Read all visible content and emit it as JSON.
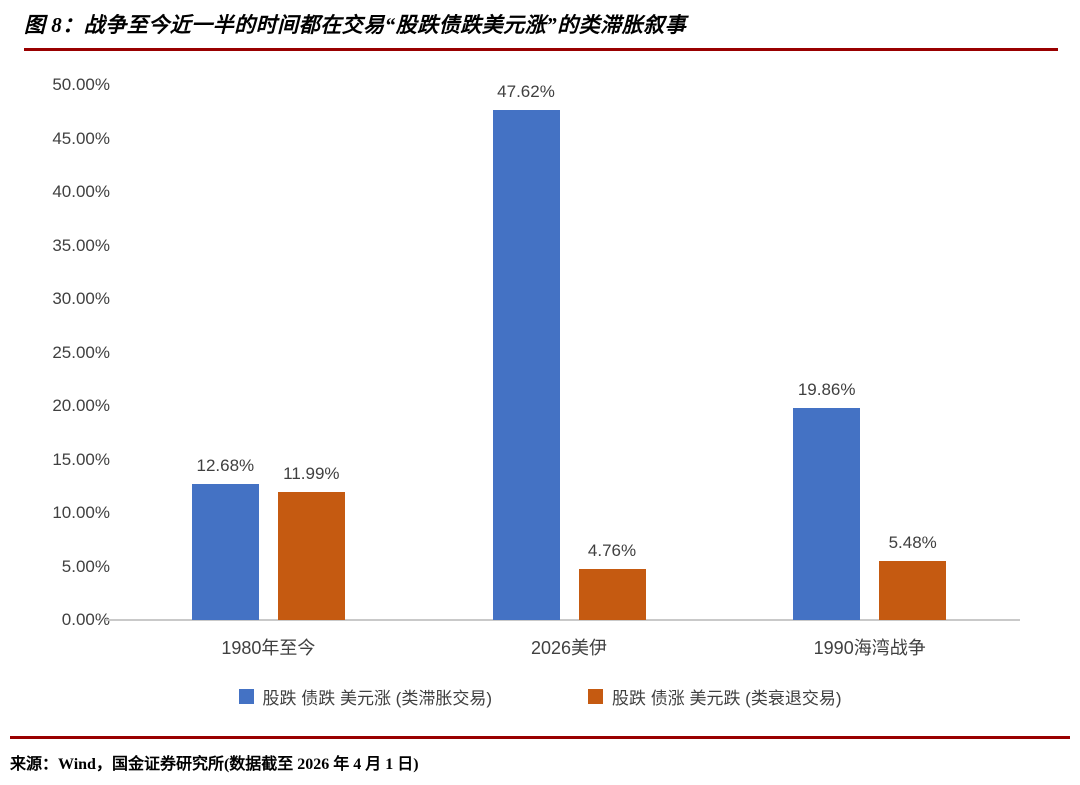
{
  "figure": {
    "title": "图 8：战争至今近一半的时间都在交易“股跌债跌美元涨”的类滞胀叙事",
    "source": "来源：Wind，国金证券研究所(数据截至 2026 年 4 月 1 日)"
  },
  "colors": {
    "series1": "#4472C4",
    "series2": "#C55A11",
    "rule": "#990000",
    "axis_text": "#404040",
    "axis_line": "#C9C9C9"
  },
  "chart_data": {
    "type": "bar",
    "title": "图 8：战争至今近一半的时间都在交易“股跌债跌美元涨”的类滞胀叙事",
    "categories": [
      "1980年至今",
      "2026美伊",
      "1990海湾战争"
    ],
    "series": [
      {
        "name": "股跌 债跌 美元涨 (类滞胀交易)",
        "color": "#4472C4",
        "values": [
          12.68,
          47.62,
          19.86
        ]
      },
      {
        "name": "股跌 债涨 美元跌 (类衰退交易)",
        "color": "#C55A11",
        "values": [
          11.99,
          4.76,
          5.48
        ]
      }
    ],
    "value_labels": [
      [
        "12.68%",
        "47.62%",
        "19.86%"
      ],
      [
        "11.99%",
        "4.76%",
        "5.48%"
      ]
    ],
    "xlabel": "",
    "ylabel": "",
    "ylim": [
      0,
      50
    ],
    "ytick_step": 5,
    "ytick_labels": [
      "0.00%",
      "5.00%",
      "10.00%",
      "15.00%",
      "20.00%",
      "25.00%",
      "30.00%",
      "35.00%",
      "40.00%",
      "45.00%",
      "50.00%"
    ],
    "grid": false,
    "legend_position": "bottom"
  }
}
